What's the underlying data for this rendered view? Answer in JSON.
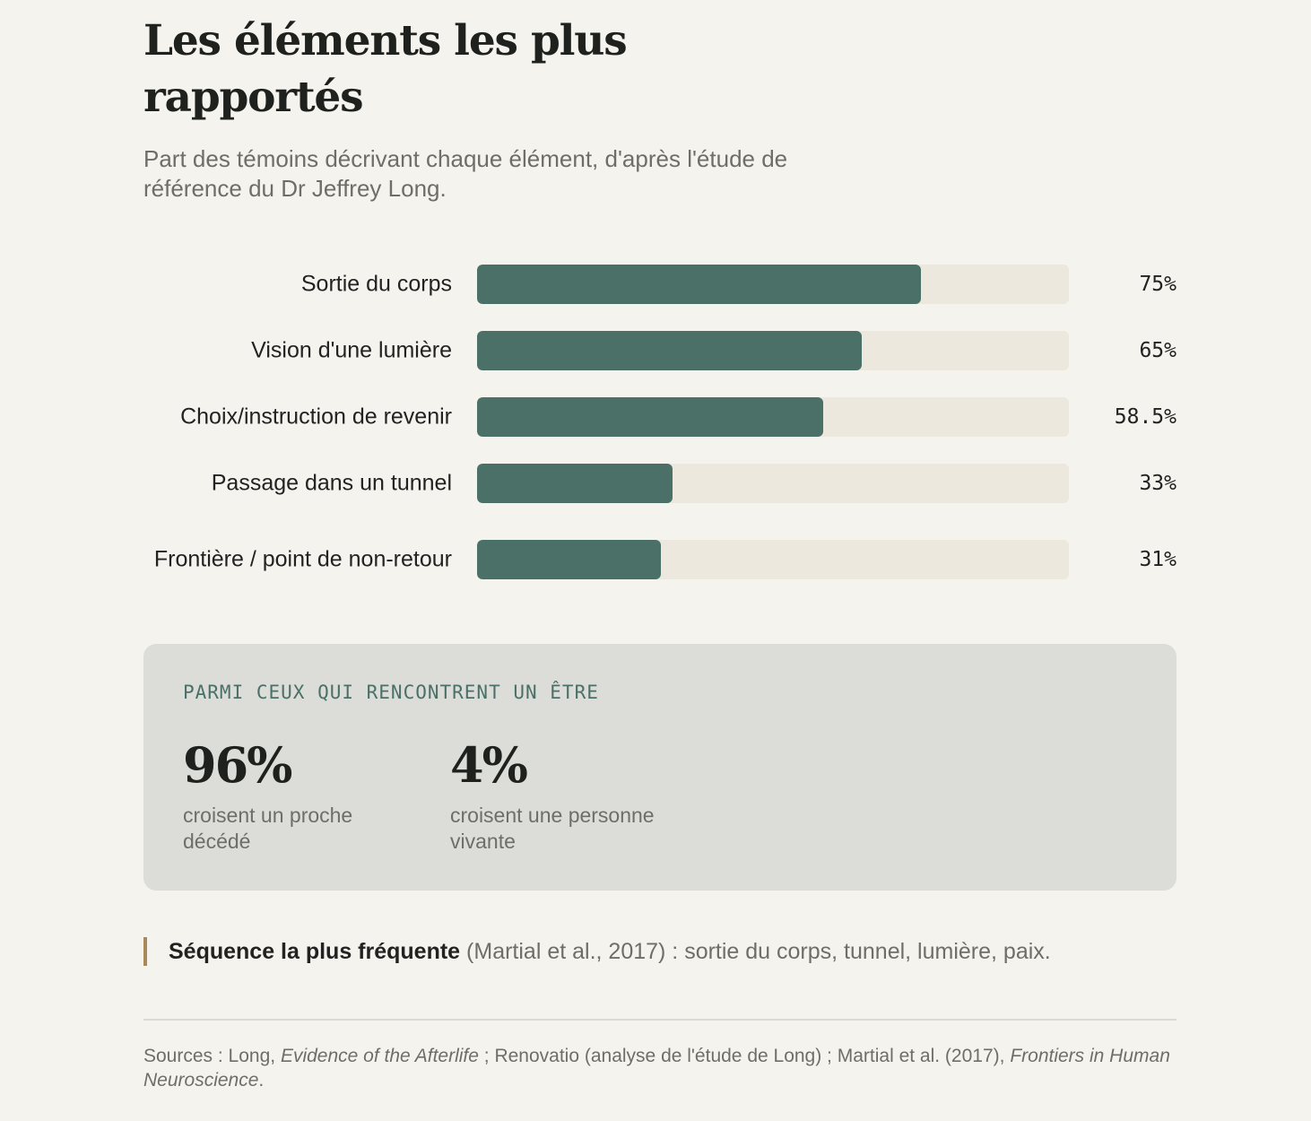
{
  "title": "Les éléments les plus rapportés",
  "subtitle": "Part des témoins décrivant chaque élément, d'après l'étude de référence du Dr Jeffrey Long.",
  "colors": {
    "bar": "#4a7068",
    "track": "#ece8de",
    "panel": "#dcddd8",
    "accent": "#a88a5a"
  },
  "chart_data": {
    "type": "bar",
    "orientation": "horizontal",
    "title": "Les éléments les plus rapportés",
    "categories": [
      "Sortie du corps",
      "Vision d'une lumière",
      "Choix/instruction de revenir",
      "Passage dans un tunnel",
      "Frontière / point de non-retour"
    ],
    "values": [
      75,
      65,
      58.5,
      33,
      31
    ],
    "value_labels": [
      "75%",
      "65%",
      "58.5%",
      "33%",
      "31%"
    ],
    "xlim": [
      0,
      100
    ],
    "grid": false,
    "legend": "none"
  },
  "panel": {
    "kicker": "PARMI CEUX QUI RENCONTRENT UN ÊTRE",
    "stats": [
      {
        "value": "96%",
        "desc": "croisent un proche décédé"
      },
      {
        "value": "4%",
        "desc": "croisent une personne vivante"
      }
    ]
  },
  "sequence": {
    "bold": "Séquence la plus fréquente",
    "text": " (Martial et al., 2017) : sortie du corps, tunnel, lumière, paix."
  },
  "sources": {
    "prefix": "Sources : Long, ",
    "book": "Evidence of the Afterlife",
    "middle": " ; Renovatio (analyse de l'étude de Long) ; Martial et al. (2017), ",
    "journal": "Frontiers in Human Neuroscience",
    "suffix": "."
  }
}
